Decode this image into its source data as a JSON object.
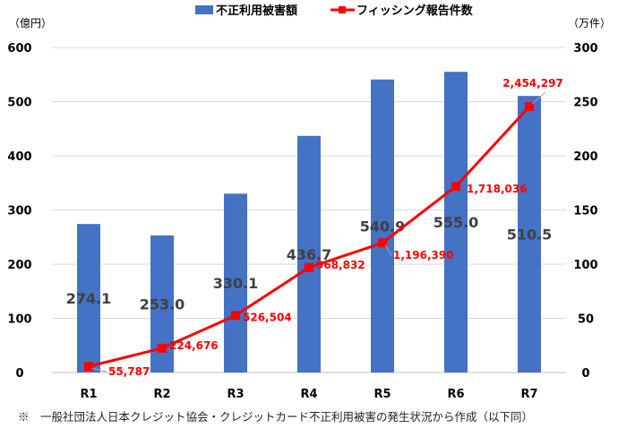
{
  "chart_data": {
    "type": "bar+line",
    "categories": [
      "R1",
      "R2",
      "R3",
      "R4",
      "R5",
      "R6",
      "R7"
    ],
    "series": [
      {
        "name": "不正利用被害額",
        "type": "bar",
        "axis": "left",
        "color": "#4472c4",
        "values": [
          274.1,
          253.0,
          330.1,
          436.7,
          540.9,
          555.0,
          510.5
        ],
        "labels": [
          "274.1",
          "253.0",
          "330.1",
          "436.7",
          "540.9",
          "555.0",
          "510.5"
        ]
      },
      {
        "name": "フィッシング報告件数",
        "type": "line",
        "axis": "right",
        "color": "#ff0000",
        "values": [
          55787,
          224676,
          526504,
          968832,
          1196390,
          1718036,
          2454297
        ],
        "labels": [
          "55,787",
          "224,676",
          "526,504",
          "968,832",
          "1,196,390",
          "1,718,036",
          "2,454,297"
        ]
      }
    ],
    "left_axis": {
      "unit_label": "（億円）",
      "range": [
        0,
        600
      ],
      "ticks": [
        "0",
        "100",
        "200",
        "300",
        "400",
        "500",
        "600"
      ]
    },
    "right_axis": {
      "unit_label": "（万件）",
      "range": [
        0,
        300
      ],
      "ticks": [
        "0",
        "50",
        "100",
        "150",
        "200",
        "250",
        "300"
      ]
    },
    "grid": true,
    "legend_placement": "top"
  },
  "footnote": "※　一般社団法人日本クレジット協会・クレジットカード不正利用被害の発生状況から作成（以下同）"
}
